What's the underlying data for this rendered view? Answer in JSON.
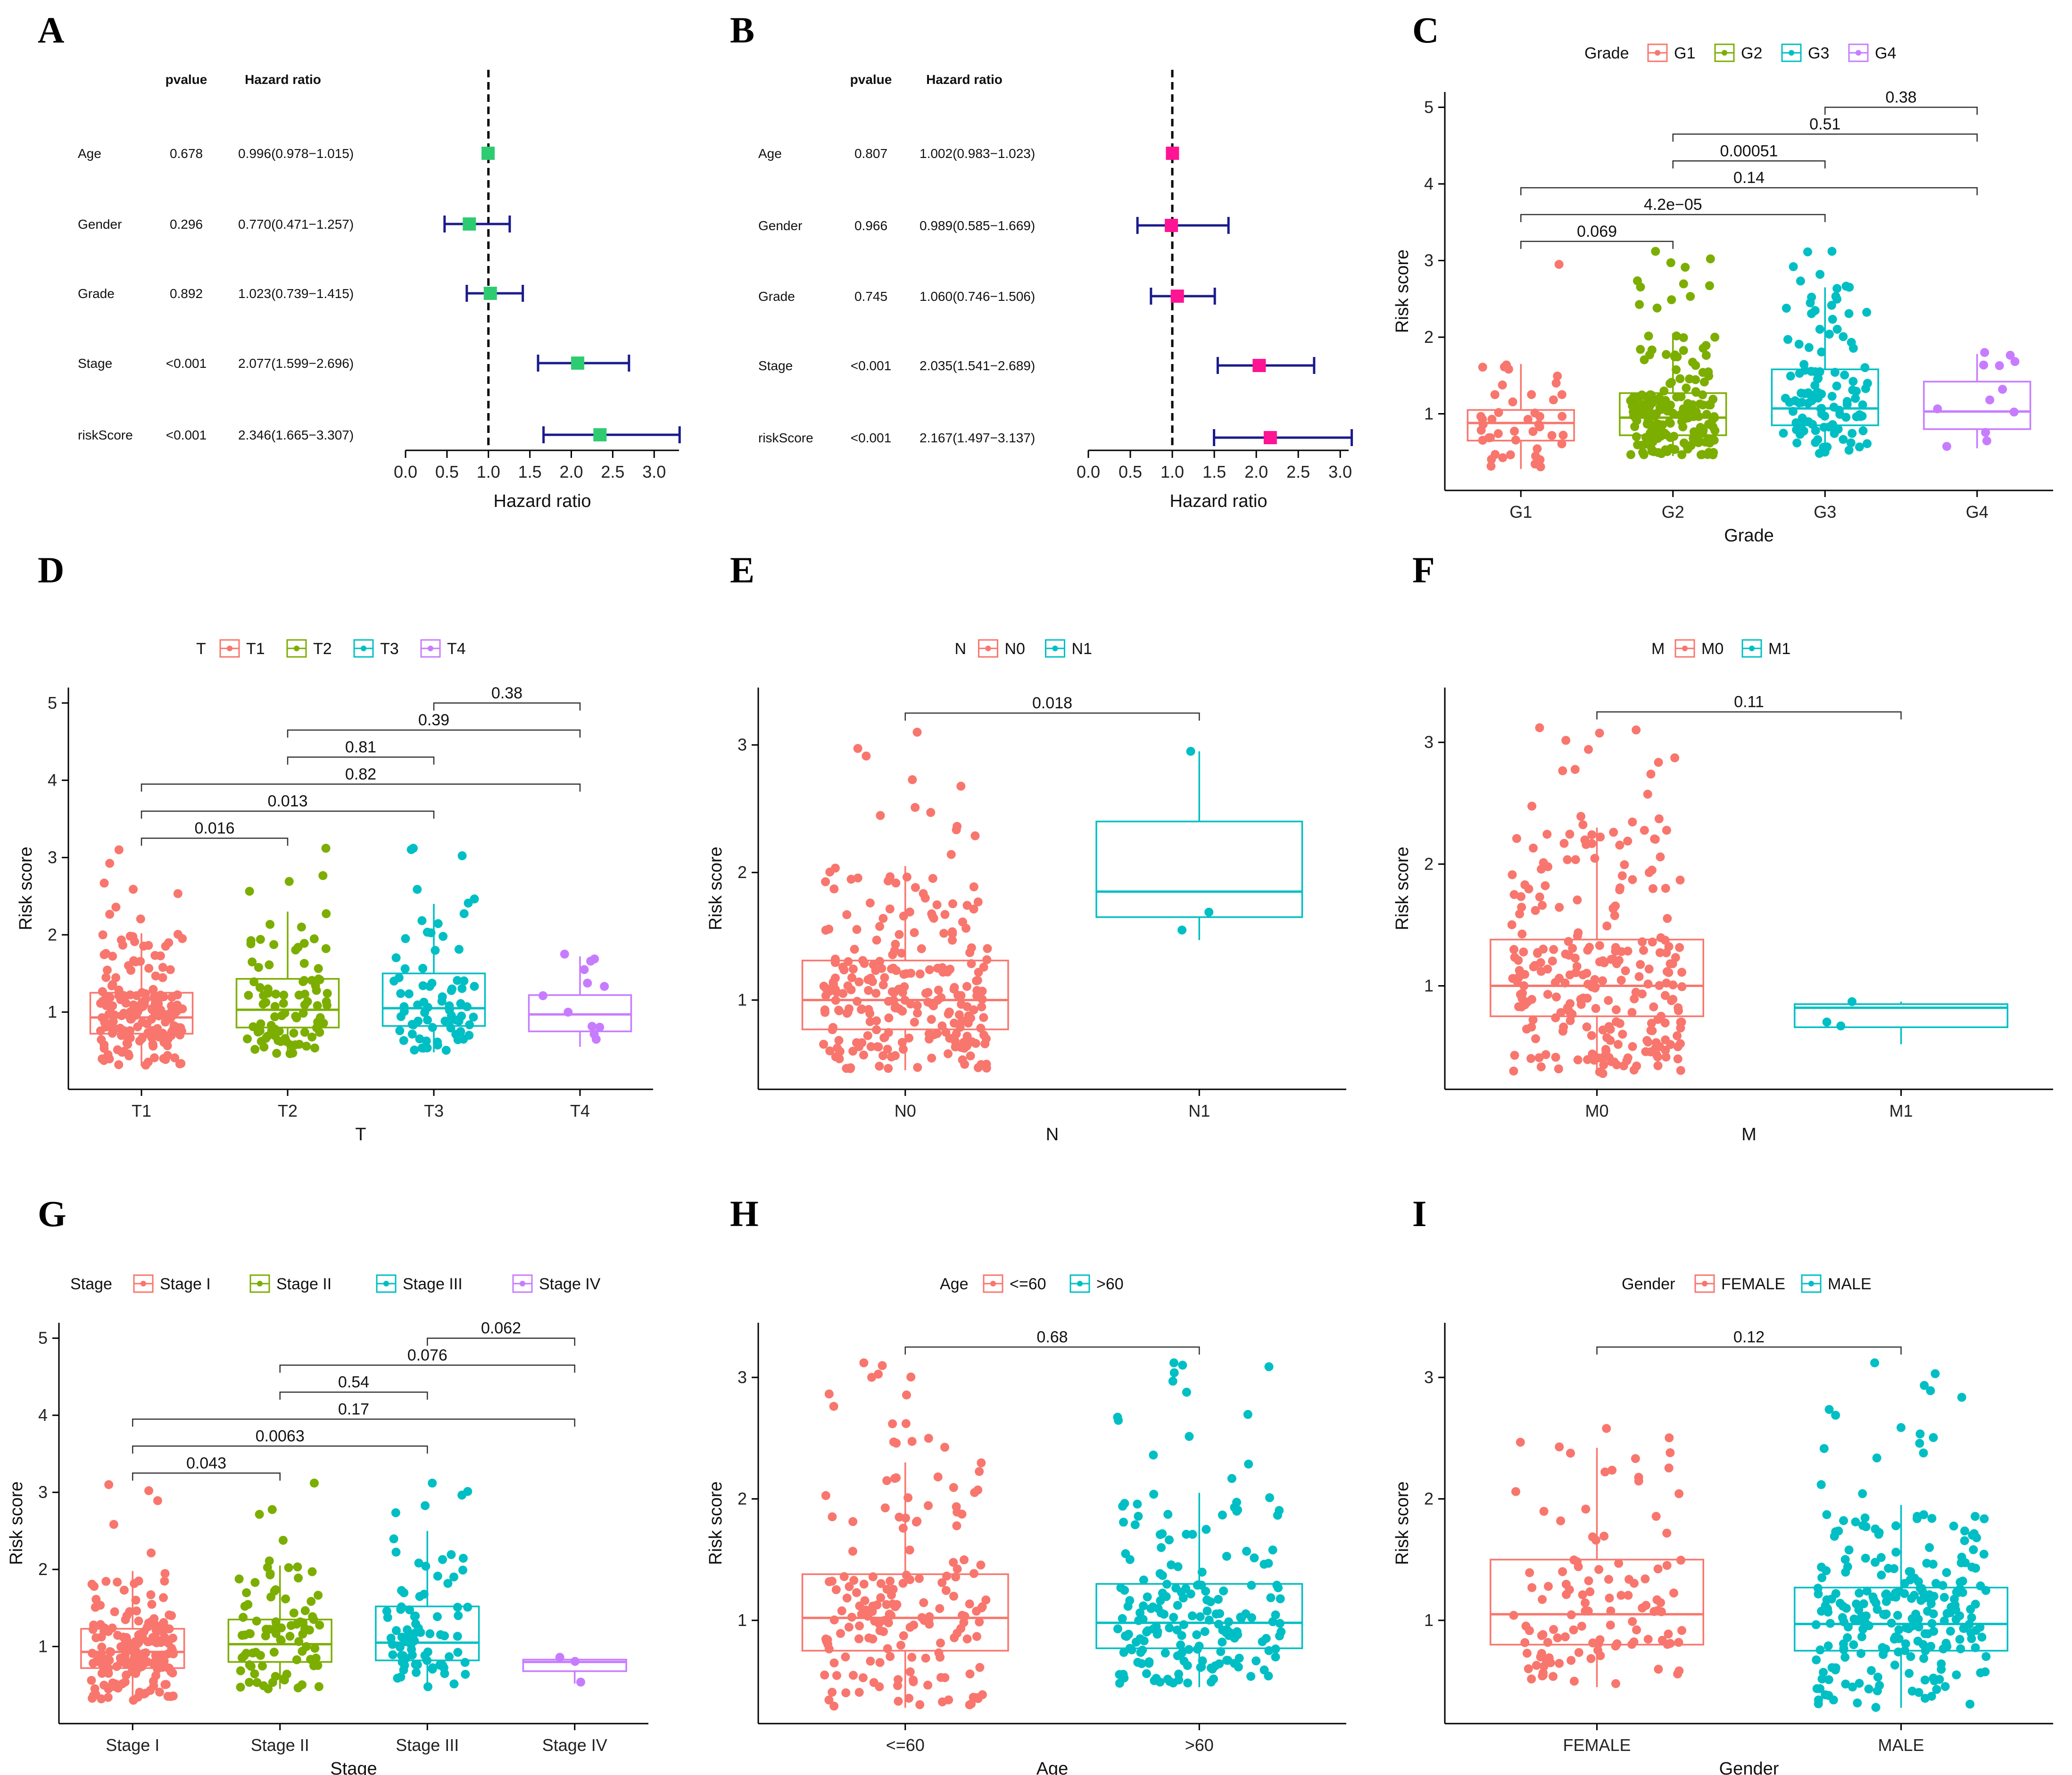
{
  "figure": {
    "panels": [
      "A",
      "B",
      "C",
      "D",
      "E",
      "F",
      "G",
      "H",
      "I"
    ]
  },
  "chart_data": [
    {
      "panel": "A",
      "type": "forest",
      "xlabel": "Hazard ratio",
      "xticks": [
        "0.0",
        "0.5",
        "1.0",
        "1.5",
        "2.0",
        "2.5",
        "3.0"
      ],
      "xlim": [
        0,
        3.3
      ],
      "reference_line": 1.0,
      "header": {
        "pvalue": "pvalue",
        "hr": "Hazard ratio"
      },
      "marker_color": "#2ecc71",
      "ci_color": "#1a1a8c",
      "rows": [
        {
          "label": "Age",
          "pvalue": "0.678",
          "hr_text": "0.996(0.978−1.015)",
          "hr": 0.996,
          "lo": 0.978,
          "hi": 1.015
        },
        {
          "label": "Gender",
          "pvalue": "0.296",
          "hr_text": "0.770(0.471−1.257)",
          "hr": 0.77,
          "lo": 0.471,
          "hi": 1.257
        },
        {
          "label": "Grade",
          "pvalue": "0.892",
          "hr_text": "1.023(0.739−1.415)",
          "hr": 1.023,
          "lo": 0.739,
          "hi": 1.415
        },
        {
          "label": "Stage",
          "pvalue": "<0.001",
          "hr_text": "2.077(1.599−2.696)",
          "hr": 2.077,
          "lo": 1.599,
          "hi": 2.696
        },
        {
          "label": "riskScore",
          "pvalue": "<0.001",
          "hr_text": "2.346(1.665−3.307)",
          "hr": 2.346,
          "lo": 1.665,
          "hi": 3.307
        }
      ]
    },
    {
      "panel": "B",
      "type": "forest",
      "xlabel": "Hazard ratio",
      "xticks": [
        "0.0",
        "0.5",
        "1.0",
        "1.5",
        "2.0",
        "2.5",
        "3.0"
      ],
      "xlim": [
        0,
        3.1
      ],
      "reference_line": 1.0,
      "header": {
        "pvalue": "pvalue",
        "hr": "Hazard ratio"
      },
      "marker_color": "#ff1493",
      "ci_color": "#1a1a8c",
      "rows": [
        {
          "label": "Age",
          "pvalue": "0.807",
          "hr_text": "1.002(0.983−1.023)",
          "hr": 1.002,
          "lo": 0.983,
          "hi": 1.023
        },
        {
          "label": "Gender",
          "pvalue": "0.966",
          "hr_text": "0.989(0.585−1.669)",
          "hr": 0.989,
          "lo": 0.585,
          "hi": 1.669
        },
        {
          "label": "Grade",
          "pvalue": "0.745",
          "hr_text": "1.060(0.746−1.506)",
          "hr": 1.06,
          "lo": 0.746,
          "hi": 1.506
        },
        {
          "label": "Stage",
          "pvalue": "<0.001",
          "hr_text": "2.035(1.541−2.689)",
          "hr": 2.035,
          "lo": 1.541,
          "hi": 2.689
        },
        {
          "label": "riskScore",
          "pvalue": "<0.001",
          "hr_text": "2.167(1.497−3.137)",
          "hr": 2.167,
          "lo": 1.497,
          "hi": 3.137
        }
      ]
    },
    {
      "panel": "C",
      "type": "box",
      "legend_title": "Grade",
      "xlabel": "Grade",
      "ylabel": "Risk score",
      "ylim": [
        0,
        5.2
      ],
      "yticks": [
        1,
        2,
        3,
        4,
        5
      ],
      "groups": [
        {
          "name": "G1",
          "color": "#F8766D",
          "q1": 0.65,
          "median": 0.88,
          "q3": 1.05,
          "wlo": 0.28,
          "whi": 1.65,
          "n": 45,
          "ymax": 2.95
        },
        {
          "name": "G2",
          "color": "#7CAE00",
          "q1": 0.72,
          "median": 0.95,
          "q3": 1.27,
          "wlo": 0.45,
          "whi": 2.05,
          "n": 190,
          "ymax": 3.12
        },
        {
          "name": "G3",
          "color": "#00BFC4",
          "q1": 0.85,
          "median": 1.07,
          "q3": 1.58,
          "wlo": 0.48,
          "whi": 2.65,
          "n": 115,
          "ymax": 3.12
        },
        {
          "name": "G4",
          "color": "#C77CFF",
          "q1": 0.8,
          "median": 1.03,
          "q3": 1.42,
          "wlo": 0.55,
          "whi": 1.78,
          "n": 12,
          "ymax": 1.8
        }
      ],
      "comparisons": [
        {
          "a": 0,
          "b": 1,
          "p": "0.069",
          "y": 3.25
        },
        {
          "a": 0,
          "b": 2,
          "p": "4.2e−05",
          "y": 3.6
        },
        {
          "a": 0,
          "b": 3,
          "p": "0.14",
          "y": 3.95
        },
        {
          "a": 1,
          "b": 2,
          "p": "0.00051",
          "y": 4.3
        },
        {
          "a": 1,
          "b": 3,
          "p": "0.51",
          "y": 4.65
        },
        {
          "a": 2,
          "b": 3,
          "p": "0.38",
          "y": 5.0
        }
      ]
    },
    {
      "panel": "D",
      "type": "box",
      "legend_title": "T",
      "xlabel": "T",
      "ylabel": "Risk score",
      "ylim": [
        0,
        5.2
      ],
      "yticks": [
        1,
        2,
        3,
        4,
        5
      ],
      "groups": [
        {
          "name": "T1",
          "color": "#F8766D",
          "q1": 0.72,
          "median": 0.93,
          "q3": 1.25,
          "wlo": 0.3,
          "whi": 2.02,
          "n": 180,
          "ymax": 3.1
        },
        {
          "name": "T2",
          "color": "#7CAE00",
          "q1": 0.8,
          "median": 1.03,
          "q3": 1.43,
          "wlo": 0.45,
          "whi": 2.3,
          "n": 90,
          "ymax": 3.12
        },
        {
          "name": "T3",
          "color": "#00BFC4",
          "q1": 0.82,
          "median": 1.05,
          "q3": 1.5,
          "wlo": 0.48,
          "whi": 2.4,
          "n": 75,
          "ymax": 3.12
        },
        {
          "name": "T4",
          "color": "#C77CFF",
          "q1": 0.75,
          "median": 0.97,
          "q3": 1.22,
          "wlo": 0.55,
          "whi": 1.72,
          "n": 12,
          "ymax": 1.75
        }
      ],
      "comparisons": [
        {
          "a": 0,
          "b": 1,
          "p": "0.016",
          "y": 3.25
        },
        {
          "a": 0,
          "b": 2,
          "p": "0.013",
          "y": 3.6
        },
        {
          "a": 0,
          "b": 3,
          "p": "0.82",
          "y": 3.95
        },
        {
          "a": 1,
          "b": 2,
          "p": "0.81",
          "y": 4.3
        },
        {
          "a": 1,
          "b": 3,
          "p": "0.39",
          "y": 4.65
        },
        {
          "a": 2,
          "b": 3,
          "p": "0.38",
          "y": 5.0
        }
      ]
    },
    {
      "panel": "E",
      "type": "box",
      "legend_title": "N",
      "xlabel": "N",
      "ylabel": "Risk score",
      "ylim": [
        0.3,
        3.45
      ],
      "yticks": [
        1,
        2,
        3
      ],
      "groups": [
        {
          "name": "N0",
          "color": "#F8766D",
          "q1": 0.77,
          "median": 1.0,
          "q3": 1.31,
          "wlo": 0.45,
          "whi": 2.05,
          "n": 250,
          "ymax": 3.1
        },
        {
          "name": "N1",
          "color": "#00BFC4",
          "q1": 1.65,
          "median": 1.85,
          "q3": 2.4,
          "wlo": 1.47,
          "whi": 2.95,
          "n": 3,
          "ymax": 2.95
        }
      ],
      "comparisons": [
        {
          "a": 0,
          "b": 1,
          "p": "0.018",
          "y": 3.25
        }
      ]
    },
    {
      "panel": "F",
      "type": "box",
      "legend_title": "M",
      "xlabel": "M",
      "ylabel": "Risk score",
      "ylim": [
        0.15,
        3.45
      ],
      "yticks": [
        1,
        2,
        3
      ],
      "groups": [
        {
          "name": "M0",
          "color": "#F8766D",
          "q1": 0.75,
          "median": 1.0,
          "q3": 1.38,
          "wlo": 0.28,
          "whi": 2.3,
          "n": 260,
          "ymax": 3.12
        },
        {
          "name": "M1",
          "color": "#00BFC4",
          "q1": 0.66,
          "median": 0.82,
          "q3": 0.85,
          "wlo": 0.52,
          "whi": 0.87,
          "n": 3,
          "ymax": 0.87
        }
      ],
      "comparisons": [
        {
          "a": 0,
          "b": 1,
          "p": "0.11",
          "y": 3.25
        }
      ]
    },
    {
      "panel": "G",
      "type": "box",
      "legend_title": "Stage",
      "xlabel": "Stage",
      "ylabel": "Risk score",
      "ylim": [
        0,
        5.2
      ],
      "yticks": [
        1,
        2,
        3,
        4,
        5
      ],
      "groups": [
        {
          "name": "Stage I",
          "color": "#F8766D",
          "q1": 0.72,
          "median": 0.93,
          "q3": 1.23,
          "wlo": 0.3,
          "whi": 1.98,
          "n": 175,
          "ymax": 3.1
        },
        {
          "name": "Stage II",
          "color": "#7CAE00",
          "q1": 0.8,
          "median": 1.03,
          "q3": 1.35,
          "wlo": 0.45,
          "whi": 2.05,
          "n": 85,
          "ymax": 3.12
        },
        {
          "name": "Stage III",
          "color": "#00BFC4",
          "q1": 0.82,
          "median": 1.05,
          "q3": 1.52,
          "wlo": 0.45,
          "whi": 2.5,
          "n": 80,
          "ymax": 3.12
        },
        {
          "name": "Stage IV",
          "color": "#C77CFF",
          "q1": 0.68,
          "median": 0.8,
          "q3": 0.83,
          "wlo": 0.52,
          "whi": 0.86,
          "n": 3,
          "ymax": 0.86
        }
      ],
      "comparisons": [
        {
          "a": 0,
          "b": 1,
          "p": "0.043",
          "y": 3.25
        },
        {
          "a": 0,
          "b": 2,
          "p": "0.0063",
          "y": 3.6
        },
        {
          "a": 0,
          "b": 3,
          "p": "0.17",
          "y": 3.95
        },
        {
          "a": 1,
          "b": 2,
          "p": "0.54",
          "y": 4.3
        },
        {
          "a": 1,
          "b": 3,
          "p": "0.076",
          "y": 4.65
        },
        {
          "a": 2,
          "b": 3,
          "p": "0.062",
          "y": 5.0
        }
      ]
    },
    {
      "panel": "H",
      "type": "box",
      "legend_title": "Age",
      "xlabel": "Age",
      "ylabel": "Risk score",
      "ylim": [
        0.15,
        3.45
      ],
      "yticks": [
        1,
        2,
        3
      ],
      "groups": [
        {
          "name": "<=60",
          "color": "#F8766D",
          "q1": 0.75,
          "median": 1.02,
          "q3": 1.38,
          "wlo": 0.28,
          "whi": 2.3,
          "n": 175,
          "ymax": 3.12
        },
        {
          "name": ">60",
          "color": "#00BFC4",
          "q1": 0.77,
          "median": 0.98,
          "q3": 1.3,
          "wlo": 0.45,
          "whi": 2.05,
          "n": 190,
          "ymax": 3.12
        }
      ],
      "comparisons": [
        {
          "a": 0,
          "b": 1,
          "p": "0.68",
          "y": 3.25
        }
      ]
    },
    {
      "panel": "I",
      "type": "box",
      "legend_title": "Gender",
      "xlabel": "Gender",
      "ylabel": "Risk score",
      "ylim": [
        0.15,
        3.45
      ],
      "yticks": [
        1,
        2,
        3
      ],
      "groups": [
        {
          "name": "FEMALE",
          "color": "#F8766D",
          "q1": 0.8,
          "median": 1.05,
          "q3": 1.5,
          "wlo": 0.45,
          "whi": 2.42,
          "n": 115,
          "ymax": 2.58
        },
        {
          "name": "MALE",
          "color": "#00BFC4",
          "q1": 0.75,
          "median": 0.97,
          "q3": 1.27,
          "wlo": 0.28,
          "whi": 1.95,
          "n": 250,
          "ymax": 3.12
        }
      ],
      "comparisons": [
        {
          "a": 0,
          "b": 1,
          "p": "0.12",
          "y": 3.25
        }
      ]
    }
  ]
}
